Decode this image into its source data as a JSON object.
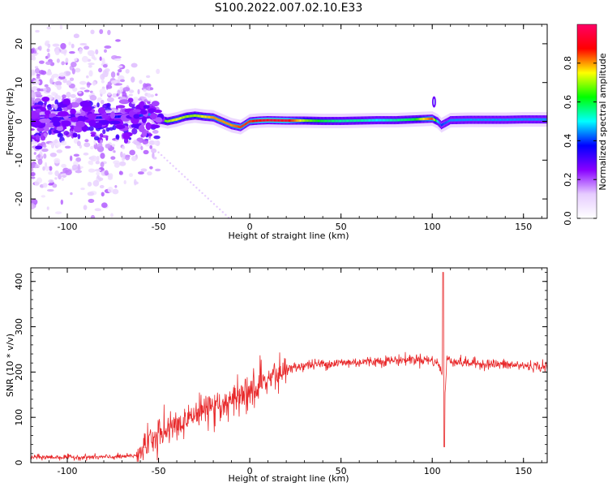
{
  "title": "S100.2022.007.02.10.E33",
  "chart_data": [
    {
      "type": "heatmap",
      "xlabel": "Height of straight line (km)",
      "ylabel": "Frequency (Hz)",
      "xlim": [
        -120,
        163
      ],
      "ylim": [
        -25,
        25
      ],
      "x_ticks": [
        -100,
        -50,
        0,
        50,
        100,
        150
      ],
      "y_ticks": [
        -20,
        -10,
        0,
        10,
        20
      ],
      "colorbar": {
        "label": "Normalized spectral amplitude",
        "range": [
          0.0,
          1.0
        ],
        "ticks": [
          "0.0",
          "0.2",
          "0.4",
          "0.6",
          "0.8"
        ],
        "colormap": [
          "#ffffff",
          "#e6ccff",
          "#8800ff",
          "#0000ff",
          "#00ffff",
          "#00ff00",
          "#ffff00",
          "#ff0000",
          "#ff0066"
        ]
      },
      "ridge": {
        "description_values": {
          "x": [
            -120,
            -100,
            -80,
            -60,
            -55,
            -50,
            -45,
            -40,
            -35,
            -30,
            -25,
            -20,
            -15,
            -10,
            -5,
            0,
            5,
            10,
            20,
            30,
            40,
            50,
            60,
            70,
            80,
            90,
            95,
            100,
            103,
            105,
            110,
            120,
            130,
            140,
            150,
            163
          ],
          "freq_hz": [
            0.5,
            0.8,
            1.0,
            1.5,
            1.8,
            0.5,
            0.0,
            0.5,
            1.2,
            1.5,
            1.2,
            1.0,
            0.0,
            -1.0,
            -1.5,
            0.0,
            0.2,
            0.3,
            0.2,
            0.2,
            0.1,
            0.1,
            0.2,
            0.3,
            0.3,
            0.5,
            0.6,
            0.7,
            0.0,
            -1.0,
            0.3,
            0.4,
            0.4,
            0.4,
            0.5,
            0.5
          ],
          "amplitude": [
            0.3,
            0.35,
            0.35,
            0.4,
            0.45,
            0.6,
            0.7,
            0.75,
            0.7,
            0.7,
            0.75,
            0.8,
            0.8,
            0.8,
            0.85,
            0.85,
            0.9,
            0.92,
            0.92,
            0.7,
            0.6,
            0.55,
            0.55,
            0.5,
            0.55,
            0.6,
            0.75,
            0.85,
            0.5,
            0.4,
            0.45,
            0.45,
            0.45,
            0.45,
            0.45,
            0.45
          ]
        }
      }
    },
    {
      "type": "line",
      "xlabel": "Height of straight line (km)",
      "ylabel": "SNR (10 * v/v)",
      "xlim": [
        -120,
        163
      ],
      "ylim": [
        0,
        430
      ],
      "x_ticks": [
        -100,
        -50,
        0,
        50,
        100,
        150
      ],
      "y_ticks": [
        0,
        100,
        200,
        300,
        400
      ],
      "line_color": "#e8282a",
      "series": [
        {
          "x": [
            -120,
            -100,
            -80,
            -65,
            -60,
            -55,
            -50,
            -45,
            -40,
            -35,
            -30,
            -25,
            -20,
            -15,
            -10,
            -5,
            0,
            5,
            10,
            15,
            20,
            25,
            30,
            40,
            50,
            60,
            70,
            80,
            90,
            95,
            100,
            103,
            105,
            106,
            107,
            108,
            109,
            110,
            115,
            120,
            130,
            140,
            150,
            163
          ],
          "values": [
            12,
            12,
            12,
            14,
            20,
            40,
            55,
            70,
            80,
            90,
            100,
            110,
            115,
            120,
            130,
            140,
            150,
            165,
            180,
            195,
            205,
            210,
            215,
            218,
            220,
            222,
            224,
            226,
            228,
            228,
            225,
            220,
            200,
            215,
            150,
            225,
            230,
            226,
            222,
            220,
            218,
            216,
            214,
            212
          ]
        }
      ],
      "noise": {
        "baseline_amplitude": 5,
        "rising_amplitude": 35,
        "plateau_amplitude": 10
      },
      "spike": {
        "x": 106,
        "peak": 420,
        "trough": 35
      }
    }
  ]
}
